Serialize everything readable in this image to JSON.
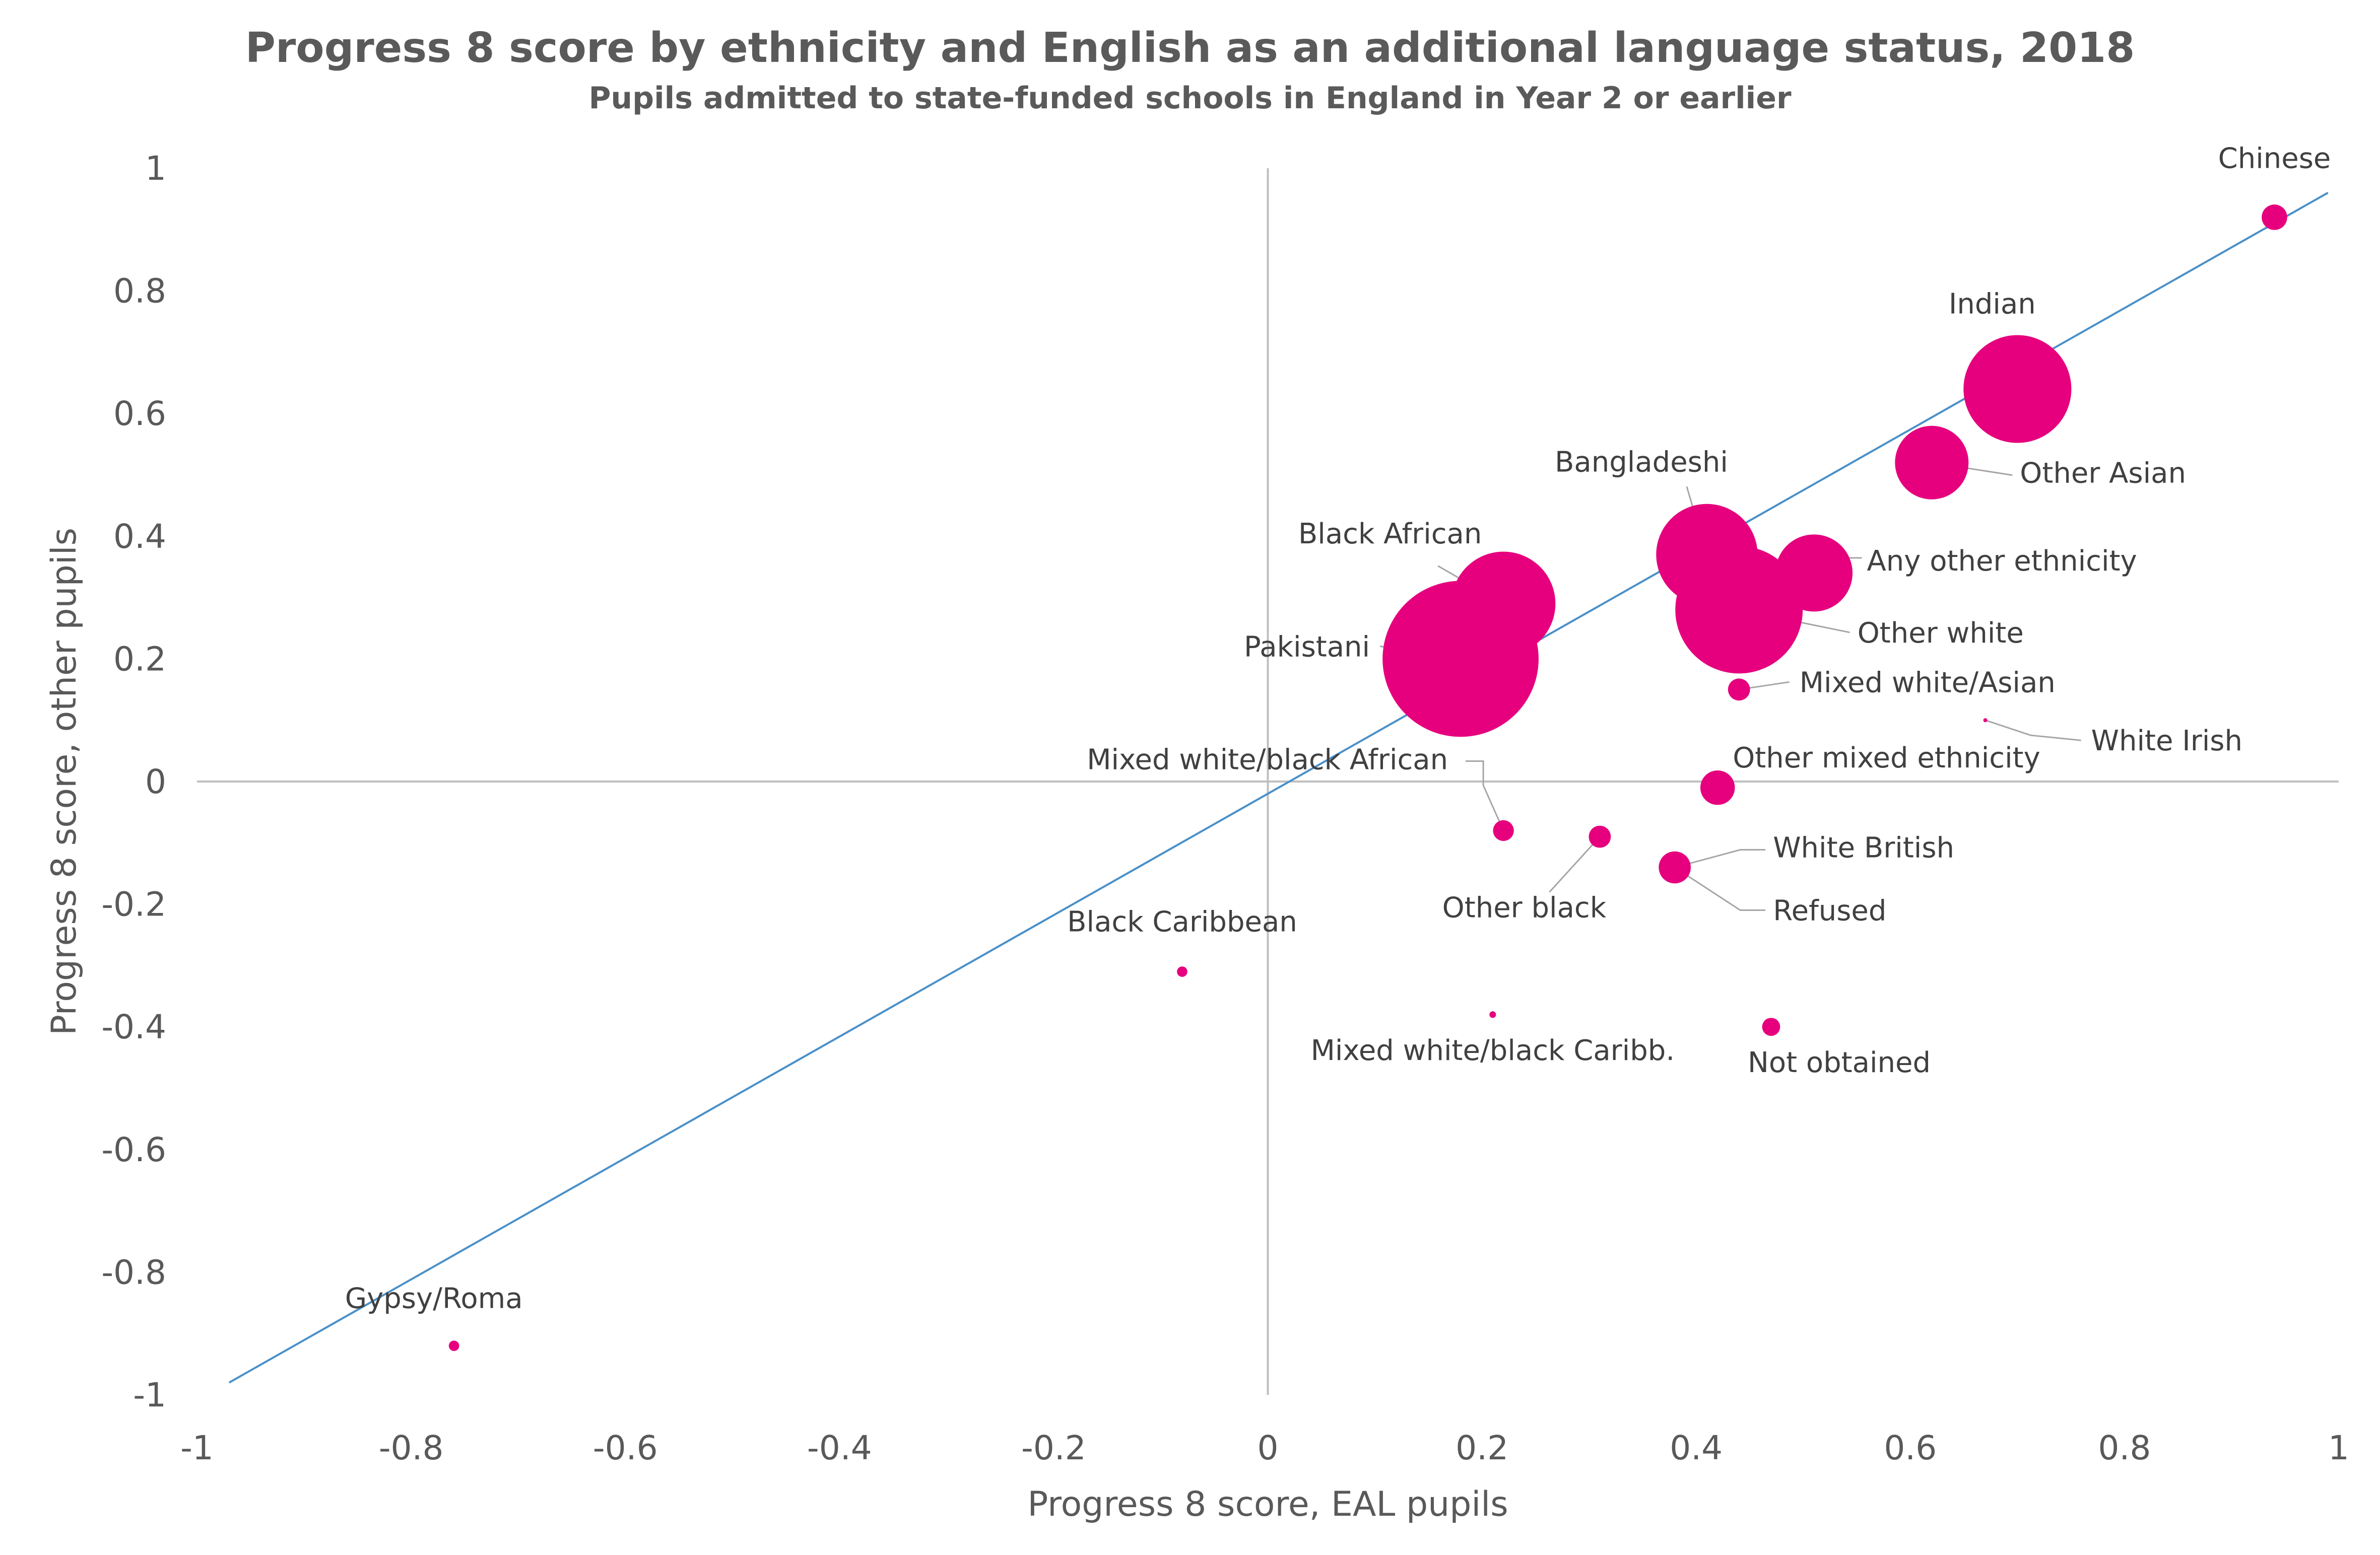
{
  "title": "Progress 8 score by ethnicity and English as an additional language status, 2018",
  "subtitle": "Pupils admitted to state-funded schools in England in Year 2 or earlier",
  "chart_data": {
    "type": "scatter",
    "title": "Progress 8 score by ethnicity and English as an additional language status, 2018",
    "subtitle": "Pupils admitted to state-funded schools in England in Year 2 or earlier",
    "xlabel": "Progress 8 score, EAL pupils",
    "ylabel": "Progress 8 score, other pupils",
    "xlim": [
      -1,
      1
    ],
    "ylim": [
      -1,
      1
    ],
    "x_ticks": [
      "-1",
      "-0.8",
      "-0.6",
      "-0.4",
      "-0.2",
      "0",
      "0.2",
      "0.4",
      "0.6",
      "0.8",
      "1"
    ],
    "y_ticks": [
      "1",
      "0.8",
      "0.6",
      "0.4",
      "0.2",
      "0",
      "-0.2",
      "-0.4",
      "-0.6",
      "-0.8",
      "-1"
    ],
    "grid": false,
    "legend": "none",
    "marker_color": "#e6007e",
    "line_color": "#4a90c8",
    "diagonal_line": {
      "x": [
        -0.97,
        0.99
      ],
      "y": [
        -0.98,
        0.96
      ]
    },
    "points": [
      {
        "name": "Chinese",
        "x": 0.94,
        "y": 0.92,
        "size": 12
      },
      {
        "name": "Indian",
        "x": 0.7,
        "y": 0.64,
        "size": 215
      },
      {
        "name": "Other Asian",
        "x": 0.62,
        "y": 0.52,
        "size": 100
      },
      {
        "name": "Bangladeshi",
        "x": 0.41,
        "y": 0.37,
        "size": 190
      },
      {
        "name": "Any other ethnicity",
        "x": 0.51,
        "y": 0.34,
        "size": 110
      },
      {
        "name": "Black African",
        "x": 0.22,
        "y": 0.29,
        "size": 200
      },
      {
        "name": "Other white",
        "x": 0.44,
        "y": 0.28,
        "size": 300
      },
      {
        "name": "Pakistani",
        "x": 0.18,
        "y": 0.2,
        "size": 450
      },
      {
        "name": "Mixed white/Asian",
        "x": 0.44,
        "y": 0.15,
        "size": 9
      },
      {
        "name": "White Irish",
        "x": 0.67,
        "y": 0.1,
        "size": 0.3
      },
      {
        "name": "Other mixed ethnicity",
        "x": 0.42,
        "y": -0.01,
        "size": 22
      },
      {
        "name": "Mixed white/black African",
        "x": 0.22,
        "y": -0.08,
        "size": 8
      },
      {
        "name": "Other black",
        "x": 0.31,
        "y": -0.09,
        "size": 9
      },
      {
        "name": "White British",
        "x": 0.38,
        "y": -0.14,
        "size": 19
      },
      {
        "name": "Refused",
        "x": 0.38,
        "y": -0.14,
        "size": 5
      },
      {
        "name": "Black Caribbean",
        "x": -0.08,
        "y": -0.31,
        "size": 2
      },
      {
        "name": "Mixed white/black Caribb.",
        "x": 0.21,
        "y": -0.38,
        "size": 0.8
      },
      {
        "name": "Not obtained",
        "x": 0.47,
        "y": -0.4,
        "size": 6
      },
      {
        "name": "Gypsy/Roma",
        "x": -0.76,
        "y": -0.92,
        "size": 2
      }
    ]
  }
}
